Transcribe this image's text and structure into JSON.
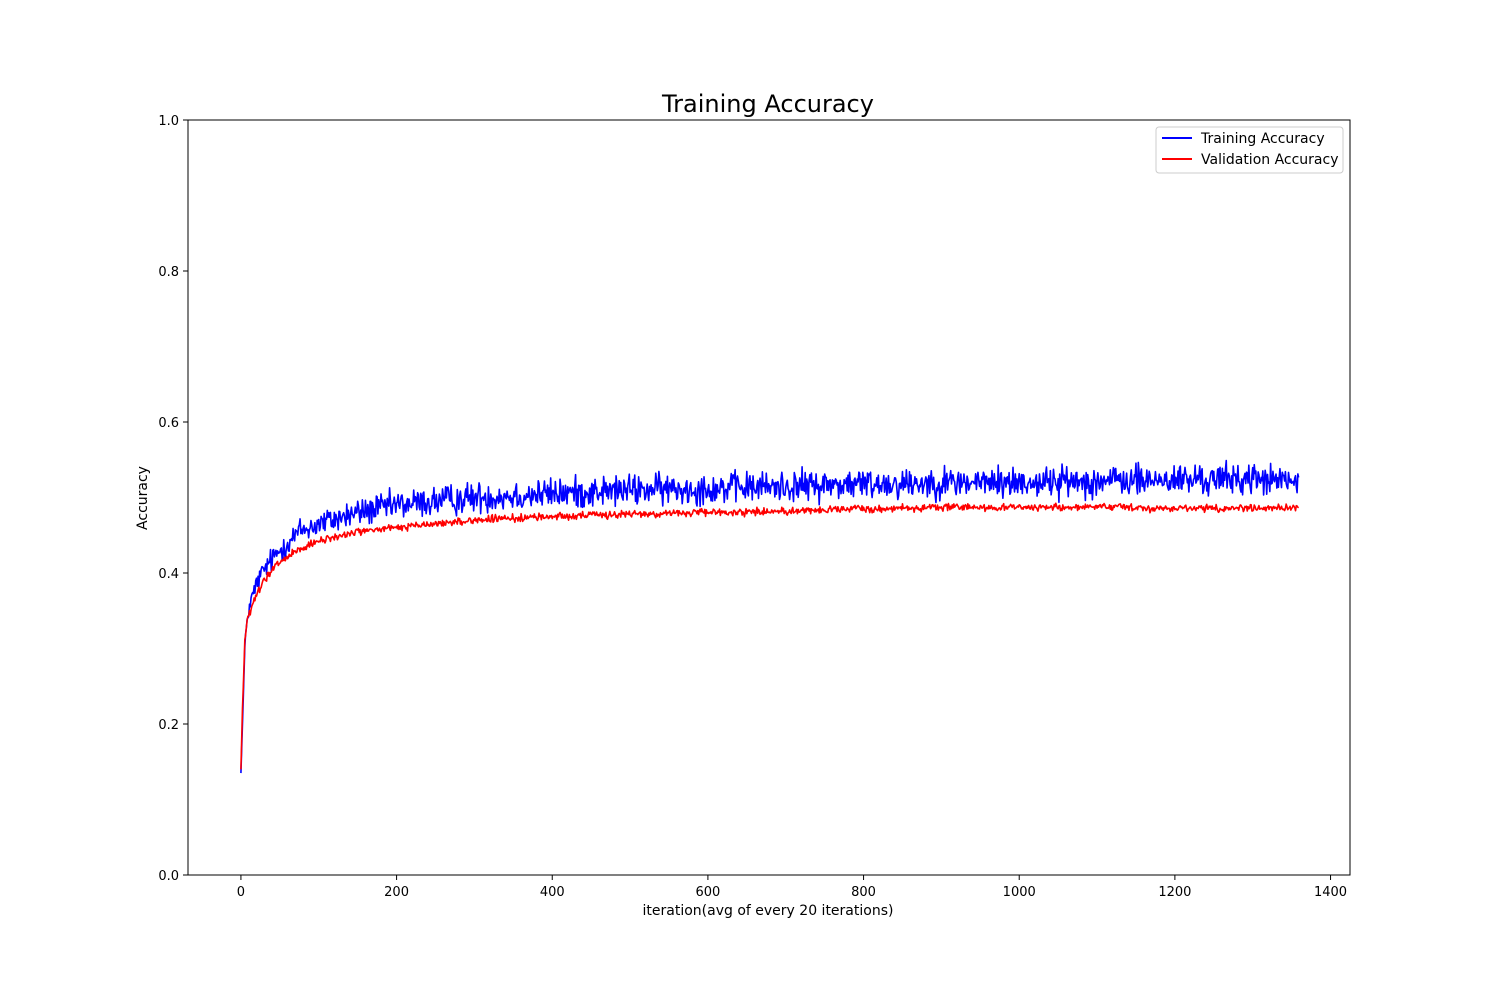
{
  "chart_data": {
    "type": "line",
    "title": "Training Accuracy",
    "xlabel": "iteration(avg of every 20 iterations)",
    "ylabel": "Accuracy",
    "xlim": [
      -68,
      1425
    ],
    "ylim": [
      0.0,
      1.0
    ],
    "xticks": [
      0,
      200,
      400,
      600,
      800,
      1000,
      1200,
      1400
    ],
    "yticks": [
      0.0,
      0.2,
      0.4,
      0.6,
      0.8,
      1.0
    ],
    "xtick_labels": [
      "0",
      "200",
      "400",
      "600",
      "800",
      "1000",
      "1200",
      "1400"
    ],
    "ytick_labels": [
      "0.0",
      "0.2",
      "0.4",
      "0.6",
      "0.8",
      "1.0"
    ],
    "grid": false,
    "legend_position": "top-right",
    "n_points": 1360,
    "series": [
      {
        "name": "Training Accuracy",
        "color": "#0000ff",
        "x": [
          0,
          2,
          5,
          8,
          12,
          20,
          30,
          50,
          75,
          100,
          150,
          200,
          250,
          300,
          400,
          500,
          600,
          700,
          800,
          900,
          1000,
          1100,
          1200,
          1300,
          1359
        ],
        "y": [
          0.135,
          0.2,
          0.3,
          0.34,
          0.36,
          0.385,
          0.405,
          0.43,
          0.455,
          0.465,
          0.48,
          0.49,
          0.495,
          0.5,
          0.505,
          0.51,
          0.512,
          0.515,
          0.518,
          0.52,
          0.52,
          0.522,
          0.523,
          0.525,
          0.52
        ],
        "noise": [
          0.0,
          0.003,
          0.005,
          0.008,
          0.01,
          0.012,
          0.013,
          0.014,
          0.015,
          0.015,
          0.016,
          0.016,
          0.017,
          0.017,
          0.017,
          0.017,
          0.017,
          0.017,
          0.017,
          0.017,
          0.017,
          0.017,
          0.017,
          0.017,
          0.017
        ]
      },
      {
        "name": "Validation Accuracy",
        "color": "#ff0000",
        "x": [
          0,
          2,
          5,
          8,
          12,
          20,
          30,
          50,
          75,
          100,
          150,
          200,
          250,
          300,
          400,
          500,
          600,
          700,
          800,
          900,
          1000,
          1100,
          1200,
          1300,
          1359
        ],
        "y": [
          0.14,
          0.22,
          0.31,
          0.335,
          0.35,
          0.37,
          0.39,
          0.415,
          0.43,
          0.442,
          0.455,
          0.46,
          0.465,
          0.47,
          0.475,
          0.478,
          0.48,
          0.482,
          0.485,
          0.487,
          0.487,
          0.487,
          0.486,
          0.486,
          0.487
        ],
        "noise": [
          0.0,
          0.002,
          0.003,
          0.004,
          0.004,
          0.005,
          0.005,
          0.005,
          0.005,
          0.004,
          0.004,
          0.004,
          0.004,
          0.004,
          0.004,
          0.004,
          0.004,
          0.004,
          0.004,
          0.004,
          0.004,
          0.004,
          0.004,
          0.004,
          0.004
        ]
      }
    ]
  }
}
